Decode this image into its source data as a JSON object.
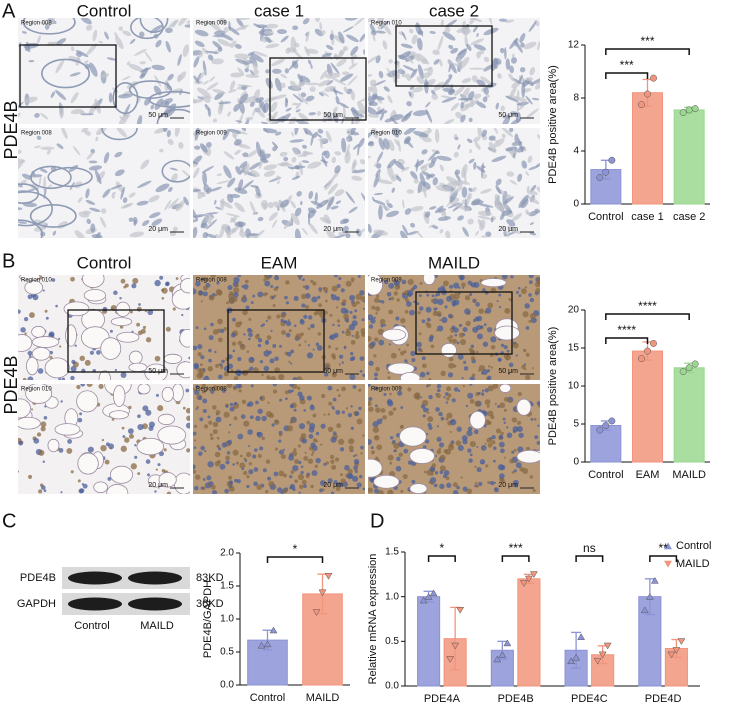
{
  "panel_labels": [
    "A",
    "B",
    "C",
    "D"
  ],
  "micrographs": [
    {
      "row_label": "PDE4B",
      "columns": [
        "Control",
        "case 1",
        "case 2"
      ],
      "regions": [
        [
          "Region 008",
          "Region 009",
          "Region 010"
        ],
        [
          "Region 008",
          "Region 009",
          "Region 010"
        ]
      ],
      "scales": [
        "50 μm",
        "20 μm"
      ]
    },
    {
      "row_label": "PDE4B",
      "columns": [
        "Control",
        "EAM",
        "MAILD"
      ],
      "regions": [
        [
          "Region 010",
          "Region 008",
          "Region 009"
        ],
        [
          "Region 010",
          "Region 008",
          "Region 009"
        ]
      ],
      "scales": [
        "50 μm",
        "20 μm"
      ]
    }
  ],
  "blot": {
    "rows": [
      {
        "name": "PDE4B",
        "size": "83KD"
      },
      {
        "name": "GAPDH",
        "size": "36KD"
      }
    ],
    "lanes": [
      "Control",
      "MAILD"
    ]
  },
  "chart_data": [
    {
      "type": "bar",
      "ylabel": "PDE4B positive area(%)",
      "categories": [
        "Control",
        "case 1",
        "case 2"
      ],
      "values": [
        2.6,
        8.4,
        7.1
      ],
      "errors": [
        0.7,
        1.0,
        0.2
      ],
      "points": [
        [
          2.0,
          2.4,
          3.3
        ],
        [
          7.5,
          8.3,
          9.5
        ],
        [
          6.9,
          7.1,
          7.2
        ]
      ],
      "colors": [
        "#8c93d6",
        "#f2957c",
        "#9ad88f"
      ],
      "ylim": [
        0,
        12
      ],
      "yticks": [
        0,
        4,
        8,
        12
      ],
      "significance": [
        {
          "groups": [
            "Control",
            "case 1"
          ],
          "label": "***"
        },
        {
          "groups": [
            "Control",
            "case 2"
          ],
          "label": "***"
        }
      ]
    },
    {
      "type": "bar",
      "ylabel": "PDE4B positive area(%)",
      "categories": [
        "Control",
        "EAM",
        "MAILD"
      ],
      "values": [
        4.8,
        14.6,
        12.4
      ],
      "errors": [
        0.6,
        1.2,
        0.6
      ],
      "points": [
        [
          4.2,
          4.8,
          5.4
        ],
        [
          13.6,
          14.6,
          15.6
        ],
        [
          11.9,
          12.4,
          12.9
        ]
      ],
      "colors": [
        "#8c93d6",
        "#f2957c",
        "#9ad88f"
      ],
      "ylim": [
        0,
        20
      ],
      "yticks": [
        0,
        5,
        10,
        15,
        20
      ],
      "significance": [
        {
          "groups": [
            "Control",
            "EAM"
          ],
          "label": "****"
        },
        {
          "groups": [
            "Control",
            "MAILD"
          ],
          "label": "****"
        }
      ]
    },
    {
      "type": "bar",
      "ylabel": "PDE4B/GAPDH",
      "categories": [
        "Control",
        "MAILD"
      ],
      "values": [
        0.68,
        1.38
      ],
      "errors": [
        0.15,
        0.3
      ],
      "points": [
        [
          0.6,
          0.62,
          0.83
        ],
        [
          1.1,
          1.4,
          1.65
        ]
      ],
      "colors": [
        "#8c93d6",
        "#f2957c"
      ],
      "ylim": [
        0,
        2
      ],
      "yticks": [
        {
          "value": 0,
          "label": "0.0"
        },
        {
          "value": 0.5,
          "label": "0.5"
        },
        {
          "value": 1,
          "label": "1.0"
        },
        {
          "value": 1.5,
          "label": "1.5"
        },
        {
          "value": 2,
          "label": "2.0"
        }
      ],
      "significance": [
        {
          "groups": [
            "Control",
            "MAILD"
          ],
          "label": "*"
        }
      ]
    },
    {
      "type": "grouped_bar",
      "ylabel": "Relative mRNA expression",
      "categories": [
        "PDE4A",
        "PDE4B",
        "PDE4C",
        "PDE4D"
      ],
      "series": [
        {
          "name": "Control",
          "color": "#8c93d6",
          "values": [
            1.0,
            0.4,
            0.4,
            1.0
          ],
          "errors": [
            0.06,
            0.1,
            0.2,
            0.2
          ],
          "points": [
            [
              0.96,
              1.0,
              1.04
            ],
            [
              0.3,
              0.35,
              0.48
            ],
            [
              0.28,
              0.32,
              0.55
            ],
            [
              0.85,
              1.0,
              1.18
            ]
          ]
        },
        {
          "name": "MAILD",
          "color": "#f2957c",
          "values": [
            0.53,
            1.2,
            0.35,
            0.42
          ],
          "errors": [
            0.35,
            0.05,
            0.1,
            0.1
          ],
          "points": [
            [
              0.3,
              0.45,
              0.85
            ],
            [
              1.15,
              1.2,
              1.25
            ],
            [
              0.28,
              0.35,
              0.45
            ],
            [
              0.35,
              0.4,
              0.5
            ]
          ]
        }
      ],
      "ylim": [
        0,
        1.5
      ],
      "yticks": [
        {
          "value": 0,
          "label": "0.0"
        },
        {
          "value": 0.5,
          "label": "0.5"
        },
        {
          "value": 1,
          "label": "1.0"
        },
        {
          "value": 1.5,
          "label": "1.5"
        }
      ],
      "significance": [
        {
          "category": "PDE4A",
          "label": "*"
        },
        {
          "category": "PDE4B",
          "label": "***"
        },
        {
          "category": "PDE4C",
          "label": "ns"
        },
        {
          "category": "PDE4D",
          "label": "**"
        }
      ],
      "legend": "top-right"
    }
  ]
}
